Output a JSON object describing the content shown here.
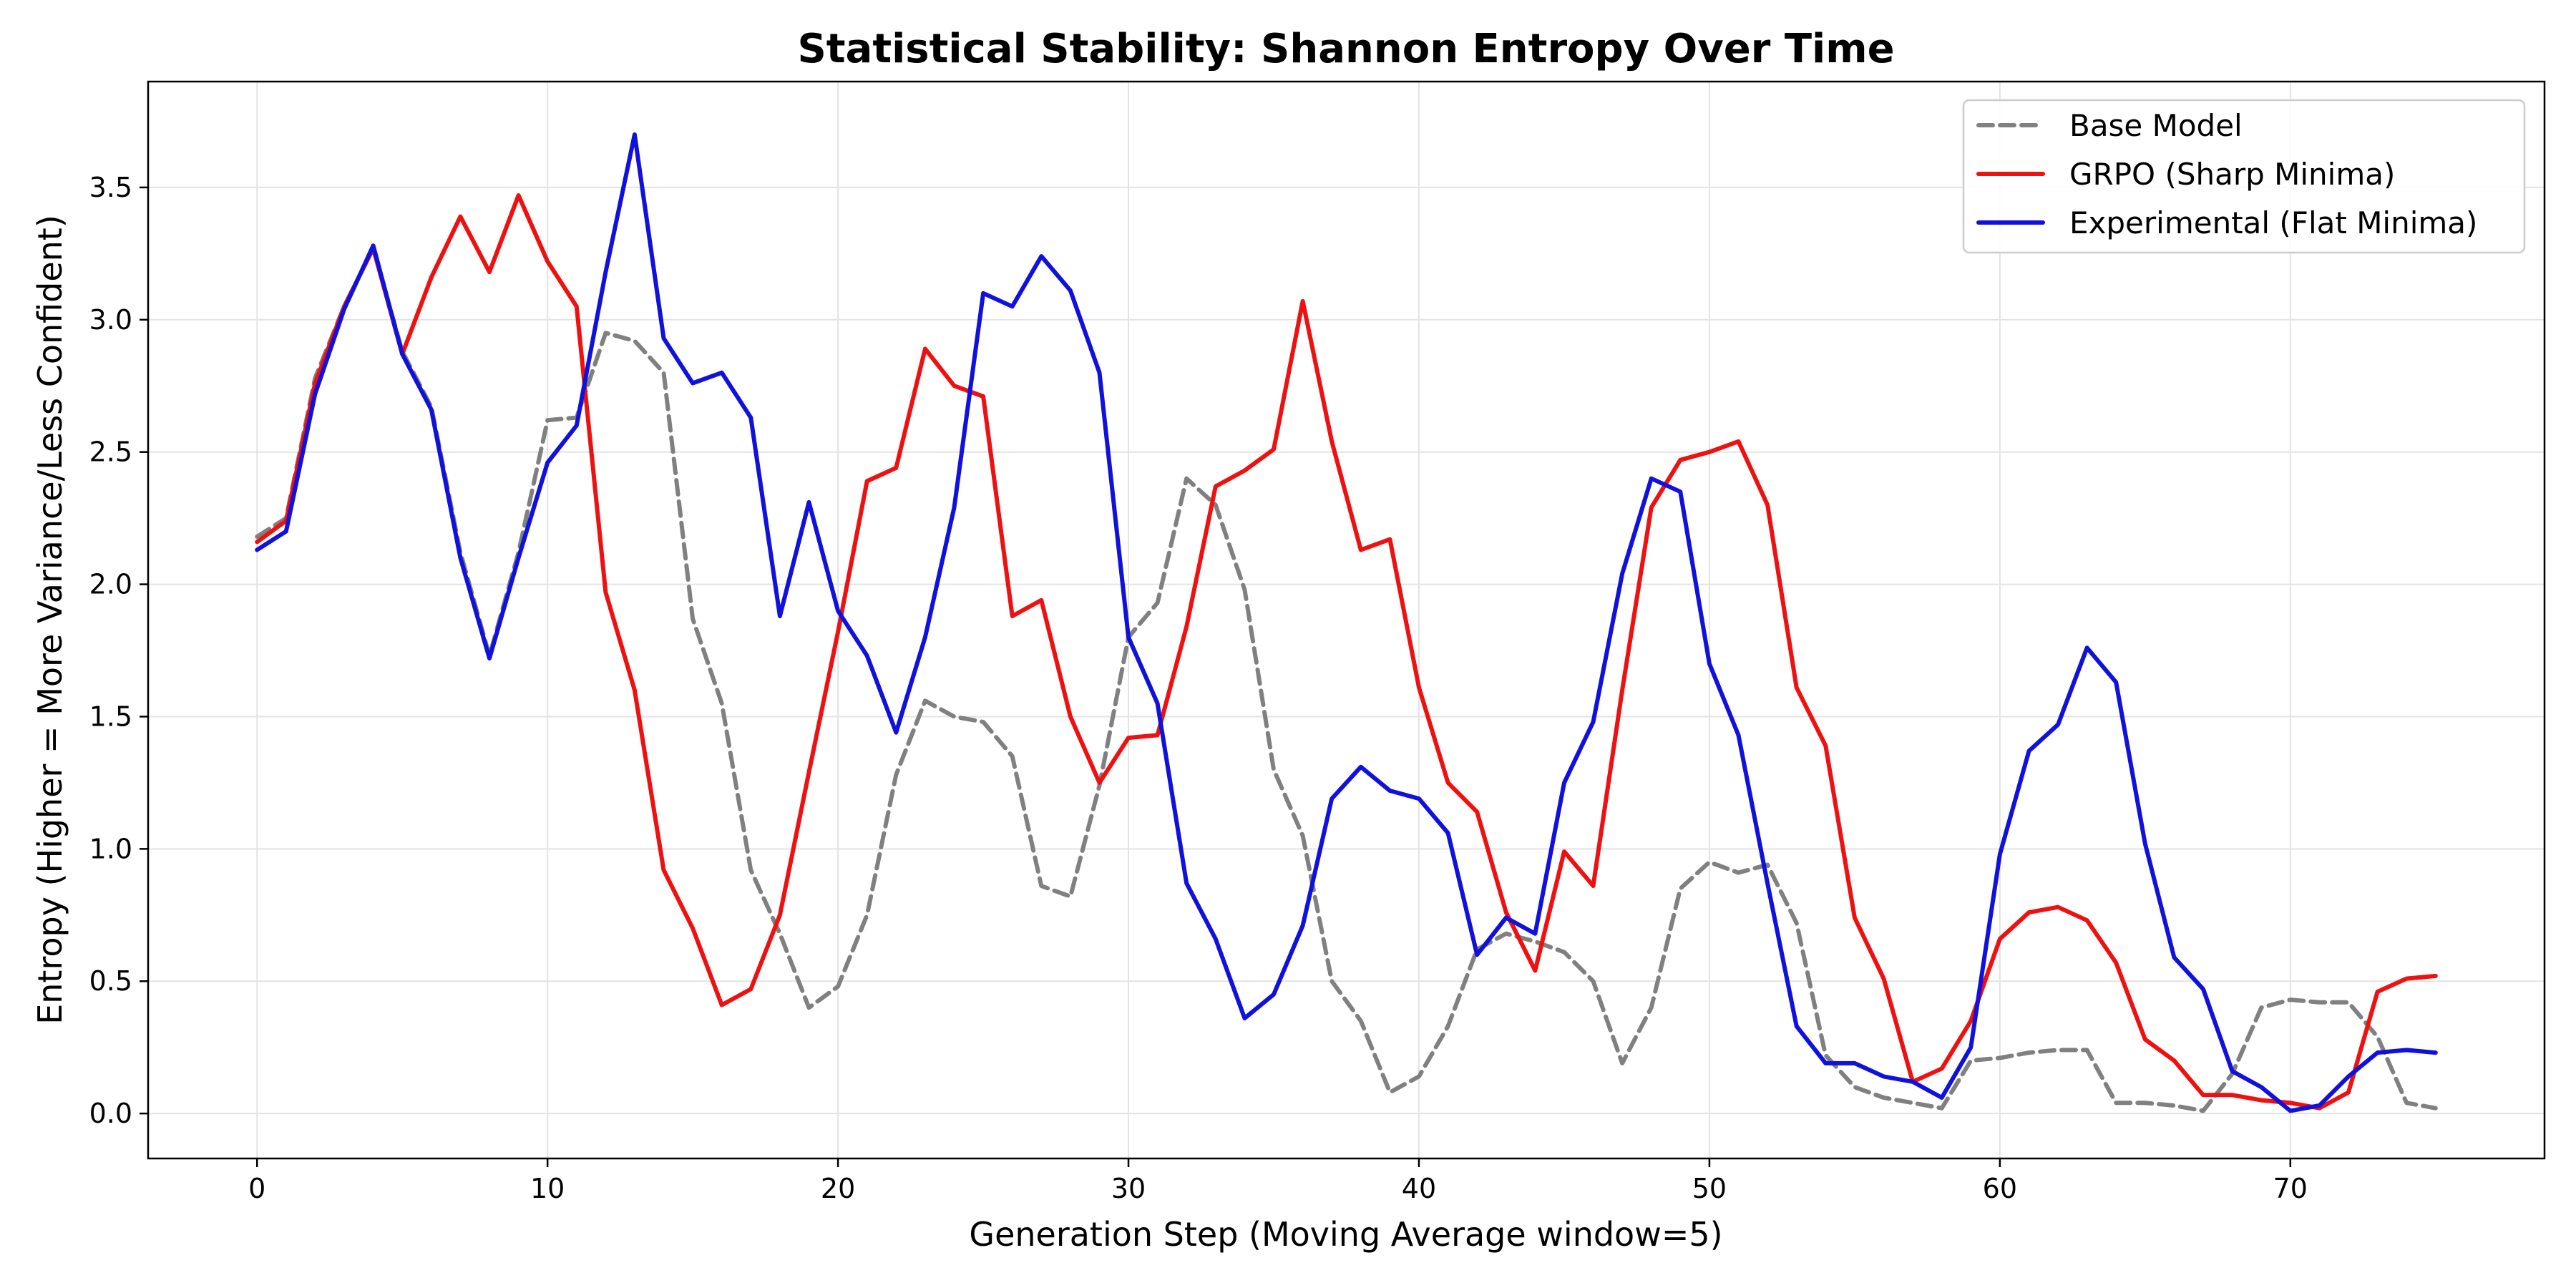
{
  "chart_data": {
    "type": "line",
    "title": "Statistical Stability: Shannon Entropy Over Time",
    "xlabel": "Generation Step (Moving Average window=5)",
    "ylabel": "Entropy (Higher = More Variance/Less Confident)",
    "xlim": [
      -3.75,
      78.75
    ],
    "ylim": [
      -0.17,
      3.9
    ],
    "xticks": [
      0,
      10,
      20,
      30,
      40,
      50,
      60,
      70
    ],
    "yticks": [
      0.0,
      0.5,
      1.0,
      1.5,
      2.0,
      2.5,
      3.0,
      3.5
    ],
    "ytick_labels": [
      "0.0",
      "0.5",
      "1.0",
      "1.5",
      "2.0",
      "2.5",
      "3.0",
      "3.5"
    ],
    "grid": true,
    "legend_position": "top-right",
    "x": [
      0,
      1,
      2,
      3,
      4,
      5,
      6,
      7,
      8,
      9,
      10,
      11,
      12,
      13,
      14,
      15,
      16,
      17,
      18,
      19,
      20,
      21,
      22,
      23,
      24,
      25,
      26,
      27,
      28,
      29,
      30,
      31,
      32,
      33,
      34,
      35,
      36,
      37,
      38,
      39,
      40,
      41,
      42,
      43,
      44,
      45,
      46,
      47,
      48,
      49,
      50,
      51,
      52,
      53,
      54,
      55,
      56,
      57,
      58,
      59,
      60,
      61,
      62,
      63,
      64,
      65,
      66,
      67,
      68,
      69,
      70,
      71,
      72,
      73,
      74,
      75
    ],
    "series": [
      {
        "name": "Base Model",
        "color": "#808080",
        "style": "dashed",
        "values": [
          2.18,
          2.25,
          2.78,
          3.05,
          3.27,
          2.88,
          2.67,
          2.12,
          1.73,
          2.12,
          2.62,
          2.63,
          2.95,
          2.92,
          2.8,
          1.87,
          1.55,
          0.92,
          0.68,
          0.4,
          0.48,
          0.75,
          1.28,
          1.56,
          1.5,
          1.48,
          1.35,
          0.86,
          0.82,
          1.24,
          1.8,
          1.93,
          2.4,
          2.3,
          1.98,
          1.3,
          1.05,
          0.5,
          0.35,
          0.08,
          0.14,
          0.33,
          0.62,
          0.68,
          0.65,
          0.61,
          0.5,
          0.19,
          0.4,
          0.85,
          0.95,
          0.91,
          0.94,
          0.72,
          0.22,
          0.1,
          0.06,
          0.04,
          0.02,
          0.2,
          0.21,
          0.23,
          0.24,
          0.24,
          0.04,
          0.04,
          0.03,
          0.01,
          0.15,
          0.4,
          0.43,
          0.42,
          0.42,
          0.29,
          0.04,
          0.02
        ]
      },
      {
        "name": "GRPO (Sharp Minima)",
        "color": "#ee1111",
        "style": "solid",
        "values": [
          2.16,
          2.24,
          2.76,
          3.05,
          3.27,
          2.87,
          3.16,
          3.39,
          3.18,
          3.47,
          3.22,
          3.05,
          1.97,
          1.6,
          0.92,
          0.7,
          0.41,
          0.47,
          0.75,
          1.29,
          1.82,
          2.39,
          2.44,
          2.89,
          2.75,
          2.71,
          1.88,
          1.94,
          1.5,
          1.25,
          1.42,
          1.43,
          1.84,
          2.37,
          2.43,
          2.51,
          3.07,
          2.54,
          2.13,
          2.17,
          1.61,
          1.25,
          1.14,
          0.76,
          0.54,
          0.99,
          0.86,
          1.6,
          2.29,
          2.47,
          2.5,
          2.54,
          2.3,
          1.61,
          1.39,
          0.74,
          0.51,
          0.12,
          0.17,
          0.35,
          0.66,
          0.76,
          0.78,
          0.73,
          0.57,
          0.28,
          0.2,
          0.07,
          0.07,
          0.05,
          0.04,
          0.02,
          0.08,
          0.46,
          0.51,
          0.52
        ]
      },
      {
        "name": "Experimental (Flat Minima)",
        "color": "#1111dd",
        "style": "solid",
        "values": [
          2.13,
          2.2,
          2.72,
          3.04,
          3.28,
          2.87,
          2.66,
          2.1,
          1.72,
          2.1,
          2.46,
          2.6,
          3.18,
          3.7,
          2.93,
          2.76,
          2.8,
          2.63,
          1.88,
          2.31,
          1.9,
          1.73,
          1.44,
          1.8,
          2.29,
          3.1,
          3.05,
          3.24,
          3.11,
          2.8,
          1.8,
          1.55,
          0.87,
          0.66,
          0.36,
          0.45,
          0.71,
          1.19,
          1.31,
          1.22,
          1.19,
          1.06,
          0.6,
          0.74,
          0.68,
          1.25,
          1.48,
          2.04,
          2.4,
          2.35,
          1.7,
          1.43,
          0.87,
          0.33,
          0.19,
          0.19,
          0.14,
          0.12,
          0.06,
          0.25,
          0.98,
          1.37,
          1.47,
          1.76,
          1.63,
          1.02,
          0.59,
          0.47,
          0.16,
          0.1,
          0.01,
          0.03,
          0.14,
          0.23,
          0.24,
          0.23
        ]
      }
    ]
  }
}
